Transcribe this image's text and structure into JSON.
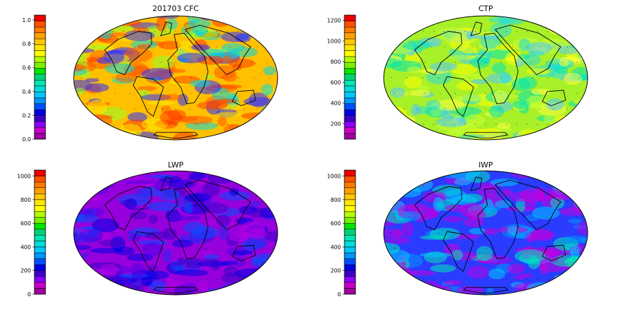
{
  "colorbar_colors": [
    "#a000a0",
    "#c800c8",
    "#8c00ff",
    "#3c00c8",
    "#0000e6",
    "#0050ff",
    "#0096ff",
    "#00c8ff",
    "#00dcdc",
    "#00e6b4",
    "#00d278",
    "#00e600",
    "#78f000",
    "#b4ff00",
    "#ffff00",
    "#ffe600",
    "#ffc800",
    "#ffa000",
    "#ff7800",
    "#ff5000",
    "#f00000"
  ],
  "panels": [
    {
      "id": "cfc",
      "title": "201703 CFC",
      "ticks": [
        "1.0",
        "0.8",
        "0.6",
        "0.4",
        "0.2",
        "0.0"
      ],
      "tick_values": [
        1.0,
        0.8,
        0.6,
        0.4,
        0.2,
        0.0
      ],
      "range": [
        0,
        1.04
      ],
      "base_color": "#ffc000",
      "blob_colors": [
        "#ff5a00",
        "#00d8e0",
        "#3030ff",
        "#90ff30",
        "#ffe600",
        "#ff3c00"
      ]
    },
    {
      "id": "ctp",
      "title": "CTP",
      "ticks": [
        "1200",
        "1000",
        "800",
        "600",
        "400",
        "200"
      ],
      "tick_values": [
        1200,
        1000,
        800,
        600,
        400,
        200
      ],
      "range": [
        50,
        1250
      ],
      "base_color": "#a8f028",
      "blob_colors": [
        "#28dcdc",
        "#ffff00",
        "#50c8ff",
        "#ffff40",
        "#00e6b4",
        "#c8ff30"
      ]
    },
    {
      "id": "lwp",
      "title": "LWP",
      "ticks": [
        "1000",
        "800",
        "600",
        "400",
        "200",
        "0"
      ],
      "tick_values": [
        1000,
        800,
        600,
        400,
        200,
        0
      ],
      "range": [
        0,
        1050
      ],
      "base_color": "#9600dc",
      "blob_colors": [
        "#3c00c8",
        "#5000e6",
        "#0000e6",
        "#0050ff",
        "#b400e6",
        "#2828f0"
      ]
    },
    {
      "id": "iwp",
      "title": "IWP",
      "ticks": [
        "1000",
        "800",
        "600",
        "400",
        "200",
        "0"
      ],
      "tick_values": [
        1000,
        800,
        600,
        400,
        200,
        0
      ],
      "range": [
        0,
        1050
      ],
      "base_color": "#2a3cff",
      "blob_colors": [
        "#c800dc",
        "#0096ff",
        "#00c8ff",
        "#b400e6",
        "#00e6b4",
        "#c800dc"
      ]
    }
  ]
}
